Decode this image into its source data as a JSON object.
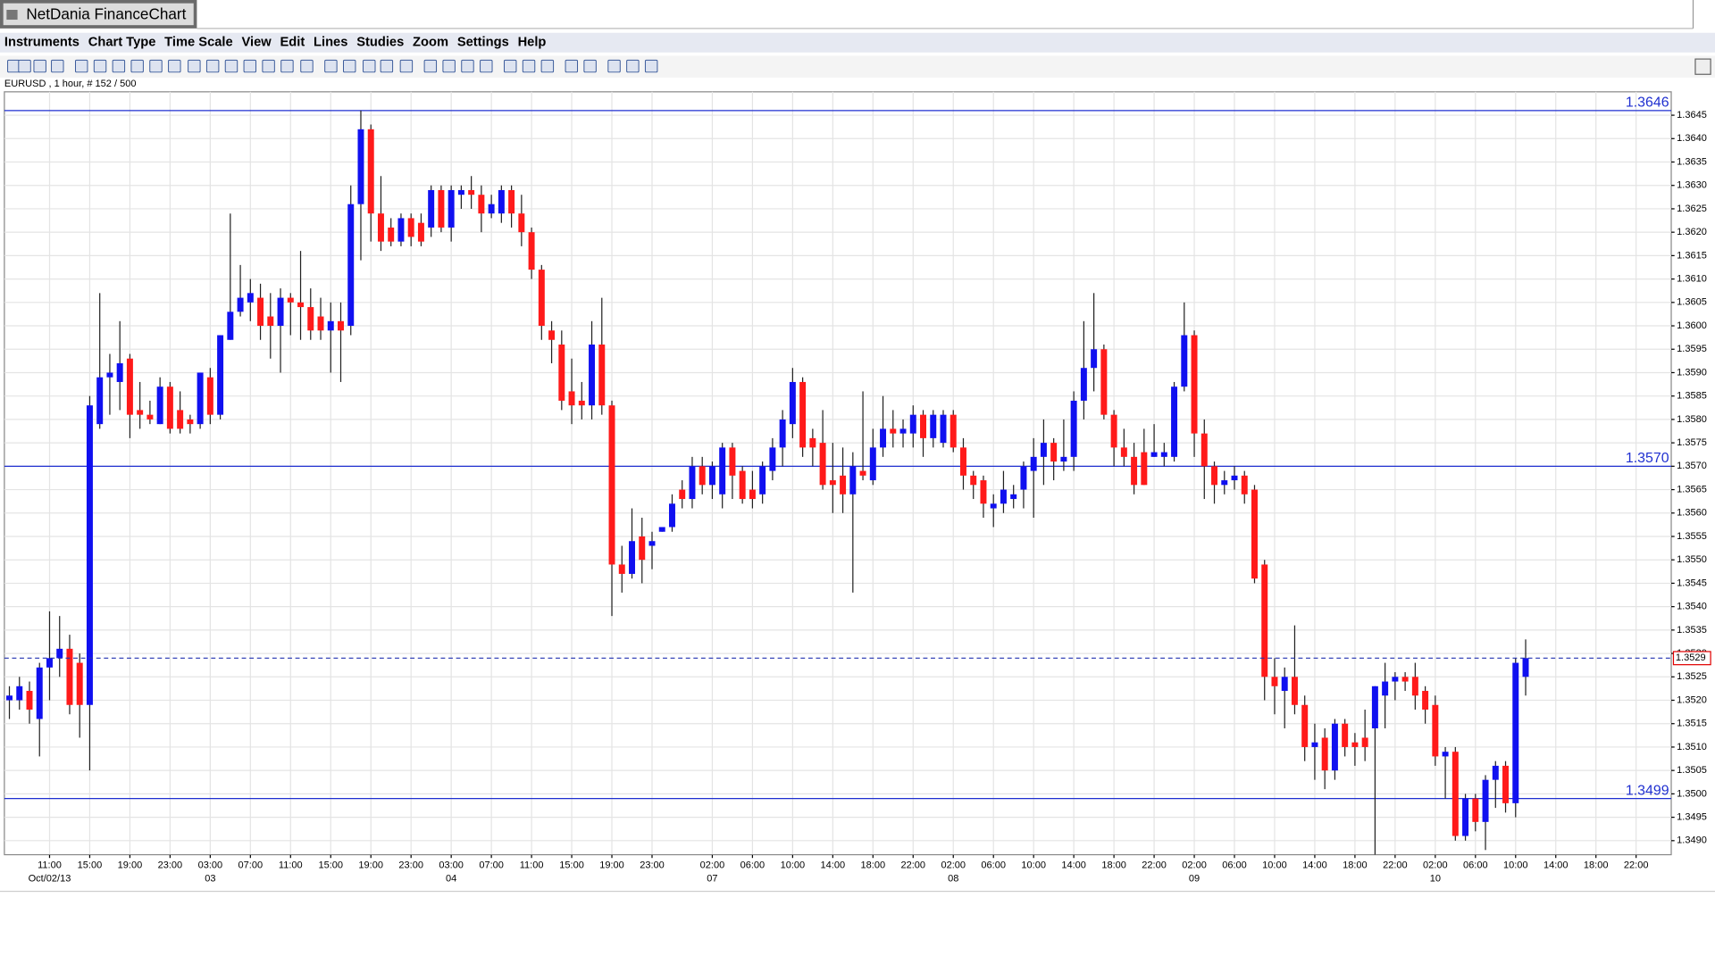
{
  "window_title": "NetDania FinanceChart",
  "menu": [
    "Instruments",
    "Chart Type",
    "Time Scale",
    "View",
    "Edit",
    "Lines",
    "Studies",
    "Zoom",
    "Settings",
    "Help"
  ],
  "info": "EURUSD , 1 hour, # 152 / 500",
  "chart_data": {
    "type": "candlestick",
    "up_color": "#1010f0",
    "down_color": "#ff1a1a",
    "grid": true,
    "xlim": [
      -0.5,
      165.5
    ],
    "ylim": [
      1.3487,
      1.365
    ],
    "xticks": [
      {
        "value": 4,
        "label": "11:00"
      },
      {
        "value": 8,
        "label": "15:00"
      },
      {
        "value": 12,
        "label": "19:00"
      },
      {
        "value": 16,
        "label": "23:00"
      },
      {
        "value": 20,
        "label": "03:00"
      },
      {
        "value": 24,
        "label": "07:00"
      },
      {
        "value": 28,
        "label": "11:00"
      },
      {
        "value": 32,
        "label": "15:00"
      },
      {
        "value": 36,
        "label": "19:00"
      },
      {
        "value": 40,
        "label": "23:00"
      },
      {
        "value": 44,
        "label": "03:00"
      },
      {
        "value": 48,
        "label": "07:00"
      },
      {
        "value": 52,
        "label": "11:00"
      },
      {
        "value": 56,
        "label": "15:00"
      },
      {
        "value": 60,
        "label": "19:00"
      },
      {
        "value": 64,
        "label": "23:00"
      },
      {
        "value": 70,
        "label": "02:00"
      },
      {
        "value": 74,
        "label": "06:00"
      },
      {
        "value": 78,
        "label": "10:00"
      },
      {
        "value": 82,
        "label": "14:00"
      },
      {
        "value": 86,
        "label": "18:00"
      },
      {
        "value": 90,
        "label": "22:00"
      },
      {
        "value": 94,
        "label": "02:00"
      },
      {
        "value": 98,
        "label": "06:00"
      },
      {
        "value": 102,
        "label": "10:00"
      },
      {
        "value": 106,
        "label": "14:00"
      },
      {
        "value": 110,
        "label": "18:00"
      },
      {
        "value": 114,
        "label": "22:00"
      },
      {
        "value": 118,
        "label": "02:00"
      },
      {
        "value": 122,
        "label": "06:00"
      },
      {
        "value": 126,
        "label": "10:00"
      },
      {
        "value": 130,
        "label": "14:00"
      },
      {
        "value": 134,
        "label": "18:00"
      },
      {
        "value": 138,
        "label": "22:00"
      },
      {
        "value": 142,
        "label": "02:00"
      },
      {
        "value": 146,
        "label": "06:00"
      },
      {
        "value": 150,
        "label": "10:00"
      },
      {
        "value": 154,
        "label": "14:00"
      },
      {
        "value": 158,
        "label": "18:00"
      },
      {
        "value": 162,
        "label": "22:00"
      }
    ],
    "date_ticks": [
      {
        "value": 4,
        "label": "Oct/02/13"
      },
      {
        "value": 20,
        "label": "03"
      },
      {
        "value": 44,
        "label": "04"
      },
      {
        "value": 70,
        "label": "07"
      },
      {
        "value": 94,
        "label": "08"
      },
      {
        "value": 118,
        "label": "09"
      },
      {
        "value": 142,
        "label": "10"
      }
    ],
    "yticks": [
      {
        "value": 1.349,
        "label": "1.3490"
      },
      1.3495,
      {
        "value": 1.35,
        "label": "1.3500"
      },
      1.3505,
      {
        "value": 1.351,
        "label": "1.3510"
      },
      1.3515,
      {
        "value": 1.352,
        "label": "1.3520"
      },
      1.3525,
      {
        "value": 1.353,
        "label": "1.3530"
      },
      1.3535,
      {
        "value": 1.354,
        "label": "1.3540"
      },
      1.3545,
      {
        "value": 1.355,
        "label": "1.3550"
      },
      1.3555,
      {
        "value": 1.356,
        "label": "1.3560"
      },
      1.3565,
      {
        "value": 1.357,
        "label": "1.3570"
      },
      1.3575,
      {
        "value": 1.358,
        "label": "1.3580"
      },
      1.3585,
      {
        "value": 1.359,
        "label": "1.3590"
      },
      1.3595,
      {
        "value": 1.36,
        "label": "1.3600"
      },
      1.3605,
      {
        "value": 1.361,
        "label": "1.3610"
      },
      1.3615,
      {
        "value": 1.362,
        "label": "1.3620"
      },
      1.3625,
      {
        "value": 1.363,
        "label": "1.3630"
      },
      1.3635,
      {
        "value": 1.364,
        "label": "1.3640"
      },
      1.3645
    ],
    "levels": [
      1.3646,
      {
        "value": 1.357,
        "label": "1.3570"
      },
      1.3499
    ],
    "last_price": 1.3529,
    "open": [
      1.352,
      1.352,
      1.3522,
      1.3516,
      1.3527,
      1.3529,
      1.3531,
      1.3528,
      1.3519,
      1.3579,
      1.3589,
      1.3588,
      1.3593,
      1.3582,
      1.3581,
      1.3579,
      1.3587,
      1.3582,
      1.358,
      1.3579,
      1.3589,
      1.3581,
      1.3597,
      1.3603,
      1.3605,
      1.3606,
      1.3602,
      1.36,
      1.3606,
      1.3605,
      1.3604,
      1.3602,
      1.3599,
      1.3601,
      1.36,
      1.3626,
      1.3642,
      1.3624,
      1.3621,
      1.3618,
      1.3623,
      1.3622,
      1.3621,
      1.3629,
      1.3621,
      1.3628,
      1.3629,
      1.3628,
      1.3624,
      1.3624,
      1.3629,
      1.3624,
      1.362,
      1.3612,
      1.3599,
      1.3596,
      1.3586,
      1.3584,
      1.3583,
      1.3596,
      1.3583,
      1.3549,
      1.3547,
      1.3555,
      1.3553,
      1.3556,
      1.3557,
      1.3565,
      1.3563,
      1.357,
      1.3566,
      1.3564,
      1.3574,
      1.3569,
      1.3565,
      1.3564,
      1.3569,
      1.3574,
      1.3579,
      1.3588,
      1.3576,
      1.3575,
      1.3567,
      1.3568,
      1.3564,
      1.3569,
      1.3567,
      1.3574,
      1.3578,
      1.3577,
      1.3577,
      1.3581,
      1.3576,
      1.3575,
      1.3581,
      1.3574,
      1.3568,
      1.3567,
      1.3561,
      1.3562,
      1.3563,
      1.3565,
      1.3569,
      1.3572,
      1.3575,
      1.3571,
      1.3572,
      1.3584,
      1.3591,
      1.3595,
      1.3581,
      1.3574,
      1.3572,
      1.3573,
      1.3572,
      1.3572,
      1.3572,
      1.3587,
      1.3598,
      1.3577,
      1.357,
      1.3566,
      1.3567,
      1.3568,
      1.3565,
      1.3549,
      1.3525,
      1.3522,
      1.3525,
      1.3519,
      1.351,
      1.3512,
      1.3505,
      1.3515,
      1.3511,
      1.3512,
      1.3514,
      1.3521,
      1.3524,
      1.3525,
      1.3525,
      1.3522,
      1.3519,
      1.3508,
      1.3509,
      1.3491,
      1.3499,
      1.3494,
      1.3503,
      1.3506,
      1.3498,
      1.3525
    ],
    "high": [
      1.3523,
      1.3525,
      1.3524,
      1.3528,
      1.3539,
      1.3538,
      1.3534,
      1.353,
      1.3585,
      1.3607,
      1.3594,
      1.3601,
      1.3594,
      1.3588,
      1.3584,
      1.3589,
      1.3588,
      1.3586,
      1.3581,
      1.359,
      1.3591,
      1.3598,
      1.3624,
      1.3613,
      1.361,
      1.3609,
      1.3607,
      1.3608,
      1.3607,
      1.3616,
      1.3608,
      1.3606,
      1.3605,
      1.3605,
      1.363,
      1.3646,
      1.3643,
      1.3632,
      1.3623,
      1.3624,
      1.3624,
      1.3624,
      1.363,
      1.363,
      1.363,
      1.363,
      1.3632,
      1.363,
      1.3628,
      1.363,
      1.363,
      1.3628,
      1.3621,
      1.3613,
      1.3601,
      1.3599,
      1.3593,
      1.3588,
      1.3601,
      1.3606,
      1.3584,
      1.3553,
      1.3561,
      1.3559,
      1.3556,
      1.3557,
      1.3564,
      1.3567,
      1.3572,
      1.3572,
      1.3571,
      1.3575,
      1.3575,
      1.357,
      1.3569,
      1.3571,
      1.3576,
      1.3582,
      1.3591,
      1.3589,
      1.3578,
      1.3582,
      1.3575,
      1.3574,
      1.3573,
      1.3586,
      1.3578,
      1.3585,
      1.3582,
      1.358,
      1.3583,
      1.3582,
      1.3582,
      1.3582,
      1.3582,
      1.3576,
      1.3569,
      1.3568,
      1.3564,
      1.3569,
      1.3566,
      1.3571,
      1.3576,
      1.358,
      1.3576,
      1.358,
      1.3586,
      1.3601,
      1.3607,
      1.3596,
      1.3582,
      1.3578,
      1.3575,
      1.3578,
      1.3579,
      1.3575,
      1.3588,
      1.3605,
      1.3599,
      1.358,
      1.3571,
      1.3569,
      1.357,
      1.3569,
      1.3566,
      1.355,
      1.3529,
      1.3527,
      1.3536,
      1.3521,
      1.3515,
      1.3514,
      1.3516,
      1.3516,
      1.3513,
      1.3518,
      1.3523,
      1.3528,
      1.3526,
      1.3526,
      1.3528,
      1.3523,
      1.3521,
      1.351,
      1.351,
      1.35,
      1.35,
      1.3504,
      1.3507,
      1.3507,
      1.3529,
      1.3533
    ],
    "low": [
      1.3516,
      1.3518,
      1.3515,
      1.3508,
      1.352,
      1.3525,
      1.3517,
      1.3512,
      1.3505,
      1.3578,
      1.3581,
      1.3582,
      1.3576,
      1.3578,
      1.3579,
      1.3579,
      1.3577,
      1.3577,
      1.3577,
      1.3578,
      1.3579,
      1.358,
      1.3597,
      1.3602,
      1.3601,
      1.3597,
      1.3593,
      1.359,
      1.3598,
      1.3597,
      1.3597,
      1.3597,
      1.359,
      1.3588,
      1.3598,
      1.3614,
      1.3618,
      1.3616,
      1.3617,
      1.3617,
      1.3617,
      1.3617,
      1.3619,
      1.362,
      1.3618,
      1.3625,
      1.3625,
      1.362,
      1.3623,
      1.3622,
      1.3621,
      1.3617,
      1.361,
      1.3597,
      1.3592,
      1.3582,
      1.3579,
      1.358,
      1.358,
      1.3581,
      1.3538,
      1.3543,
      1.3546,
      1.3545,
      1.3548,
      1.3556,
      1.3556,
      1.3561,
      1.3561,
      1.3564,
      1.3563,
      1.3561,
      1.3563,
      1.3562,
      1.3561,
      1.3562,
      1.3567,
      1.357,
      1.3576,
      1.3572,
      1.357,
      1.3565,
      1.356,
      1.356,
      1.3543,
      1.3567,
      1.3566,
      1.3572,
      1.3574,
      1.3574,
      1.3574,
      1.3572,
      1.3574,
      1.3574,
      1.3573,
      1.3565,
      1.3563,
      1.3559,
      1.3557,
      1.356,
      1.3561,
      1.3561,
      1.3559,
      1.3566,
      1.3567,
      1.3569,
      1.3569,
      1.358,
      1.3586,
      1.358,
      1.357,
      1.357,
      1.3564,
      1.3566,
      1.3572,
      1.357,
      1.3571,
      1.3586,
      1.3572,
      1.3563,
      1.3562,
      1.3564,
      1.3565,
      1.3562,
      1.3545,
      1.352,
      1.3517,
      1.3514,
      1.3517,
      1.3507,
      1.3503,
      1.3501,
      1.3503,
      1.3508,
      1.3506,
      1.3507,
      1.3487,
      1.3514,
      1.352,
      1.3522,
      1.3518,
      1.3515,
      1.3506,
      1.3499,
      1.349,
      1.349,
      1.3492,
      1.3488,
      1.3497,
      1.3496,
      1.3495,
      1.3521
    ],
    "close": [
      1.3521,
      1.3523,
      1.3518,
      1.3527,
      1.3529,
      1.3531,
      1.3519,
      1.3519,
      1.3583,
      1.3589,
      1.359,
      1.3592,
      1.3581,
      1.3581,
      1.358,
      1.3587,
      1.3578,
      1.3578,
      1.3579,
      1.359,
      1.3581,
      1.3598,
      1.3603,
      1.3606,
      1.3607,
      1.36,
      1.36,
      1.3606,
      1.3605,
      1.3604,
      1.3599,
      1.3599,
      1.3601,
      1.3599,
      1.3626,
      1.3642,
      1.3624,
      1.3618,
      1.3618,
      1.3623,
      1.3619,
      1.3618,
      1.3629,
      1.3621,
      1.3629,
      1.3629,
      1.3628,
      1.3624,
      1.3626,
      1.3629,
      1.3624,
      1.362,
      1.3612,
      1.36,
      1.3597,
      1.3584,
      1.3583,
      1.3583,
      1.3596,
      1.3583,
      1.3549,
      1.3547,
      1.3554,
      1.355,
      1.3554,
      1.3557,
      1.3562,
      1.3563,
      1.357,
      1.3566,
      1.357,
      1.3574,
      1.3568,
      1.3563,
      1.3563,
      1.357,
      1.3574,
      1.358,
      1.3588,
      1.3574,
      1.3574,
      1.3566,
      1.3566,
      1.3564,
      1.357,
      1.3568,
      1.3574,
      1.3578,
      1.3577,
      1.3578,
      1.3581,
      1.3576,
      1.3581,
      1.3581,
      1.3574,
      1.3568,
      1.3566,
      1.3562,
      1.3562,
      1.3565,
      1.3564,
      1.357,
      1.3572,
      1.3575,
      1.3571,
      1.3572,
      1.3584,
      1.3591,
      1.3595,
      1.3581,
      1.3574,
      1.3572,
      1.3566,
      1.3566,
      1.3573,
      1.3573,
      1.3587,
      1.3598,
      1.3577,
      1.357,
      1.3566,
      1.3567,
      1.3568,
      1.3564,
      1.3546,
      1.3525,
      1.3523,
      1.3525,
      1.3519,
      1.351,
      1.3511,
      1.3505,
      1.3515,
      1.351,
      1.351,
      1.351,
      1.3523,
      1.3524,
      1.3525,
      1.3524,
      1.3521,
      1.3518,
      1.3508,
      1.3509,
      1.3491,
      1.3499,
      1.3494,
      1.3503,
      1.3506,
      1.3498,
      1.3528,
      1.3529
    ]
  }
}
